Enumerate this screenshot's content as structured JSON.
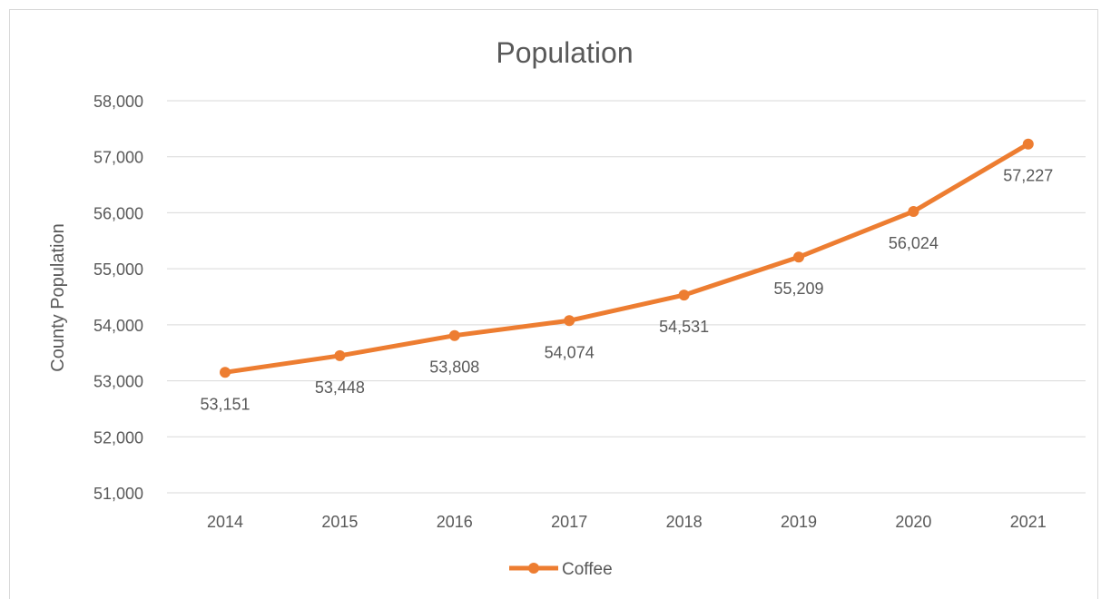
{
  "chart_data": {
    "type": "line",
    "title": "Population",
    "xlabel": "",
    "ylabel": "County Population",
    "categories": [
      "2014",
      "2015",
      "2016",
      "2017",
      "2018",
      "2019",
      "2020",
      "2021"
    ],
    "series": [
      {
        "name": "Coffee",
        "values": [
          53151,
          53448,
          53808,
          54074,
          54531,
          55209,
          56024,
          57227
        ],
        "color": "#ED7D31"
      }
    ],
    "data_labels": [
      "53,151",
      "53,448",
      "53,808",
      "54,074",
      "54,531",
      "55,209",
      "56,024",
      "57,227"
    ],
    "ylim": [
      51000,
      58000
    ],
    "yticks": [
      51000,
      52000,
      53000,
      54000,
      55000,
      56000,
      57000,
      58000
    ],
    "ytick_labels": [
      "51,000",
      "52,000",
      "53,000",
      "54,000",
      "55,000",
      "56,000",
      "57,000",
      "58,000"
    ],
    "grid": true,
    "legend_position": "bottom",
    "colors": {
      "gridline": "#d9d9d9",
      "text": "#595959",
      "title": "#595959"
    }
  }
}
